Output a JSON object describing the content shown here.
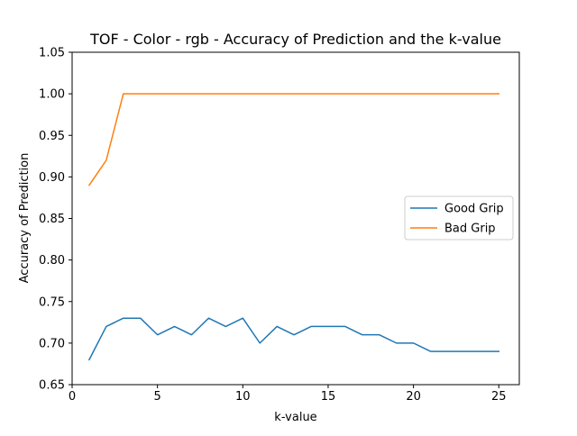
{
  "chart_data": {
    "type": "line",
    "title": "TOF - Color - rgb - Accuracy of Prediction and the k-value",
    "xlabel": "k-value",
    "ylabel": "Accuracy of Prediction",
    "xlim": [
      0,
      26.2
    ],
    "ylim": [
      0.65,
      1.05
    ],
    "x_ticks": [
      0,
      5,
      10,
      15,
      20,
      25
    ],
    "x_tick_labels": [
      "0",
      "5",
      "10",
      "15",
      "20",
      "25"
    ],
    "y_ticks": [
      0.65,
      0.7,
      0.75,
      0.8,
      0.85,
      0.9,
      0.95,
      1.0,
      1.05
    ],
    "y_tick_labels": [
      "0.65",
      "0.70",
      "0.75",
      "0.80",
      "0.85",
      "0.90",
      "0.95",
      "1.00",
      "1.05"
    ],
    "grid": false,
    "legend_position": "center-right",
    "x": [
      1,
      2,
      3,
      4,
      5,
      6,
      7,
      8,
      9,
      10,
      11,
      12,
      13,
      14,
      15,
      16,
      17,
      18,
      19,
      20,
      21,
      22,
      23,
      24,
      25
    ],
    "series": [
      {
        "name": "Good Grip",
        "color": "#1f77b4",
        "values": [
          0.68,
          0.72,
          0.73,
          0.73,
          0.71,
          0.72,
          0.71,
          0.73,
          0.72,
          0.73,
          0.7,
          0.72,
          0.71,
          0.72,
          0.72,
          0.72,
          0.71,
          0.71,
          0.7,
          0.7,
          0.69,
          0.69,
          0.69,
          0.69,
          0.69
        ]
      },
      {
        "name": "Bad Grip",
        "color": "#ff7f0e",
        "values": [
          0.89,
          0.92,
          1.0,
          1.0,
          1.0,
          1.0,
          1.0,
          1.0,
          1.0,
          1.0,
          1.0,
          1.0,
          1.0,
          1.0,
          1.0,
          1.0,
          1.0,
          1.0,
          1.0,
          1.0,
          1.0,
          1.0,
          1.0,
          1.0,
          1.0
        ]
      }
    ]
  }
}
